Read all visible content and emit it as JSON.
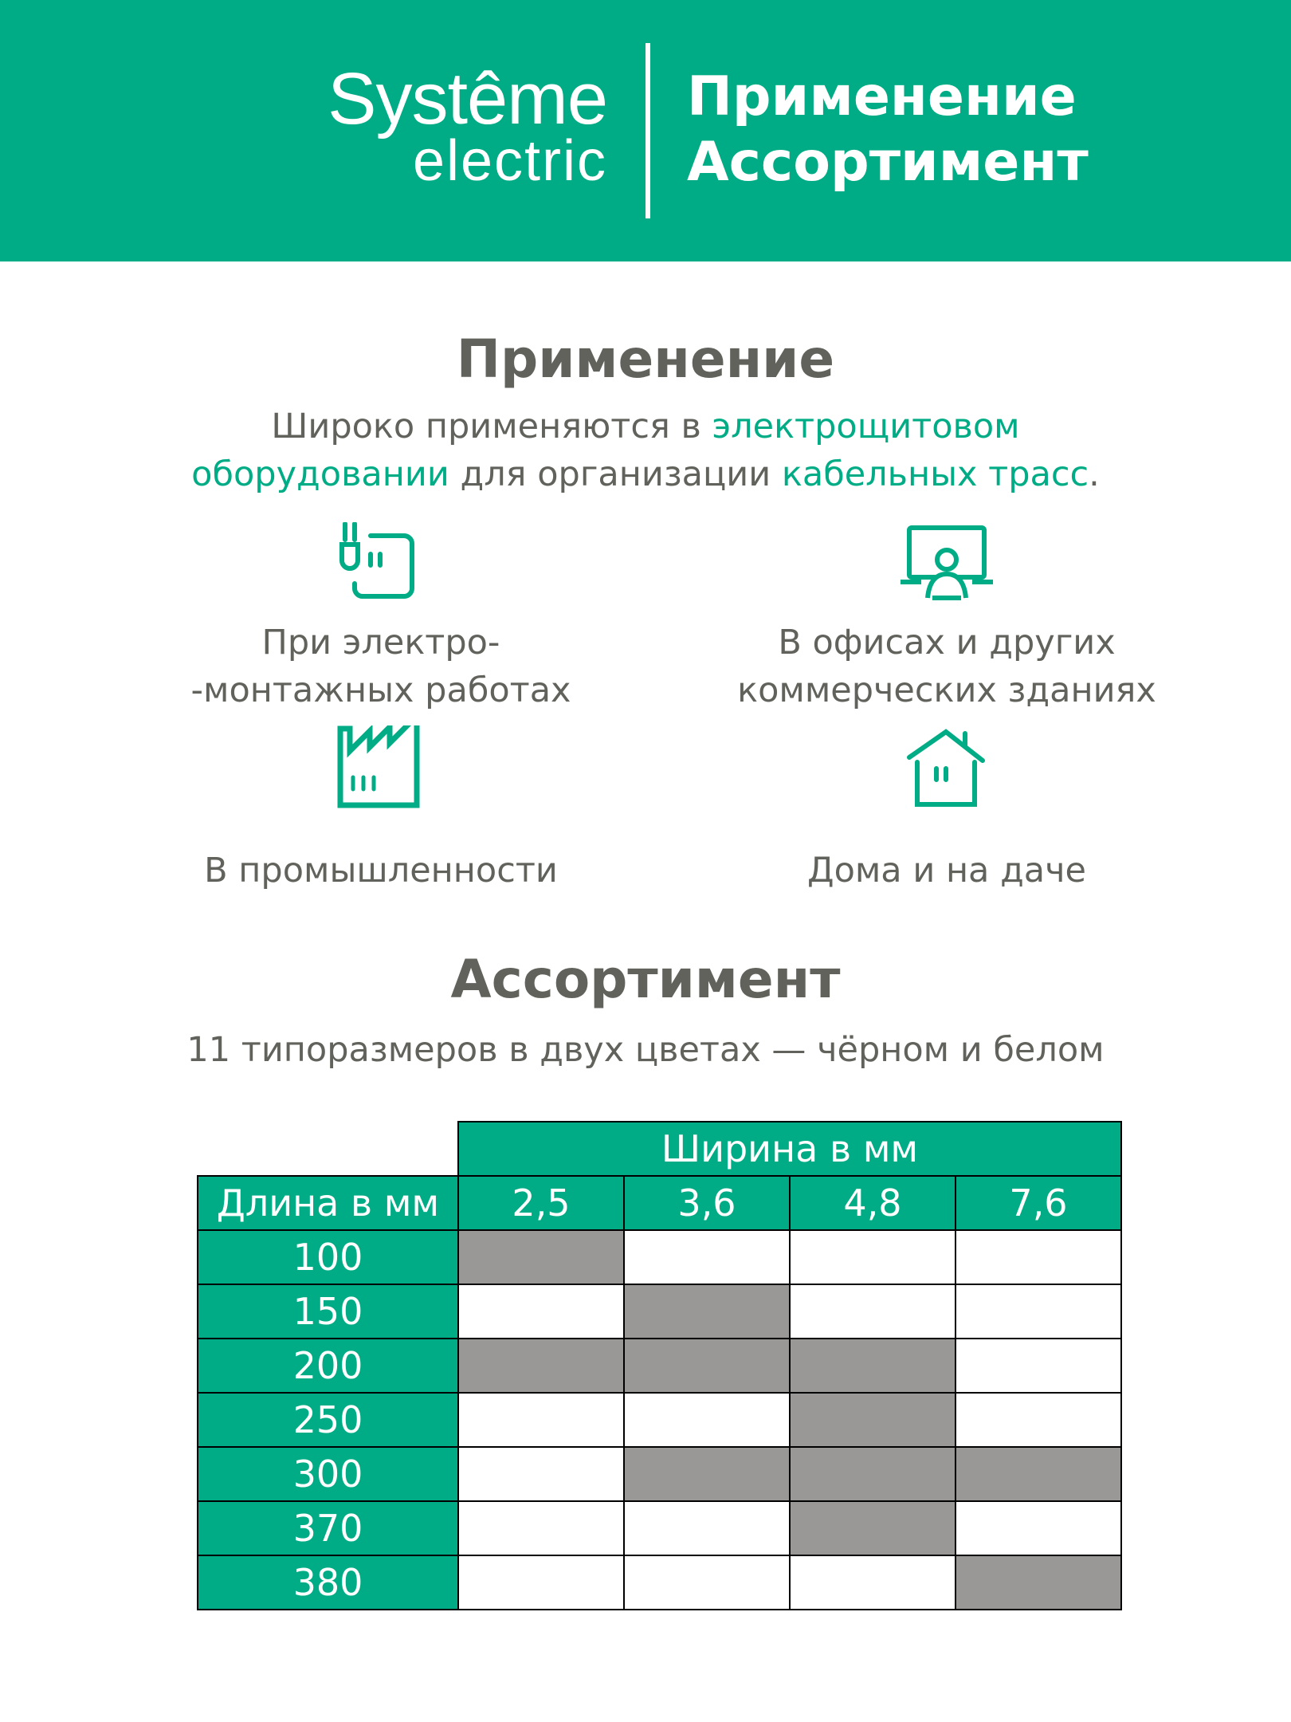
{
  "brand": {
    "line1": "Systême",
    "line2": "electric",
    "color": "#00ac85"
  },
  "header": {
    "title1": "Применение",
    "title2": "Ассортимент"
  },
  "application": {
    "heading": "Применение",
    "text": [
      {
        "t": "Широко применяются в ",
        "accent": false
      },
      {
        "t": "электрощитовом оборудовании",
        "accent": true
      },
      {
        "t": " для организации ",
        "accent": false
      },
      {
        "t": "кабельных трасс",
        "accent": true
      },
      {
        "t": ".",
        "accent": false
      }
    ],
    "items": [
      {
        "icon": "plug-socket-icon",
        "line1": "При электро-",
        "line2": "-монтажных работах"
      },
      {
        "icon": "office-person-icon",
        "line1": "В офисах и других",
        "line2": "коммерческих зданиях"
      },
      {
        "icon": "factory-icon",
        "line1": "В промышленности",
        "line2": ""
      },
      {
        "icon": "house-icon",
        "line1": "Дома и на даче",
        "line2": ""
      }
    ]
  },
  "assortment": {
    "heading": "Ассортимент",
    "subtitle": "11 типоразмеров в двух цветах — чёрном и белом",
    "table": {
      "width_header": "Ширина в мм",
      "length_header": "Длина в мм",
      "widths": [
        "2,5",
        "3,6",
        "4,8",
        "7,6"
      ],
      "rows": [
        {
          "length": "100",
          "available": [
            true,
            false,
            false,
            false
          ]
        },
        {
          "length": "150",
          "available": [
            false,
            true,
            false,
            false
          ]
        },
        {
          "length": "200",
          "available": [
            true,
            true,
            true,
            false
          ]
        },
        {
          "length": "250",
          "available": [
            false,
            false,
            true,
            false
          ]
        },
        {
          "length": "300",
          "available": [
            false,
            true,
            true,
            true
          ]
        },
        {
          "length": "370",
          "available": [
            false,
            false,
            true,
            false
          ]
        },
        {
          "length": "380",
          "available": [
            false,
            false,
            false,
            true
          ]
        }
      ],
      "available_color": "#999896"
    }
  }
}
